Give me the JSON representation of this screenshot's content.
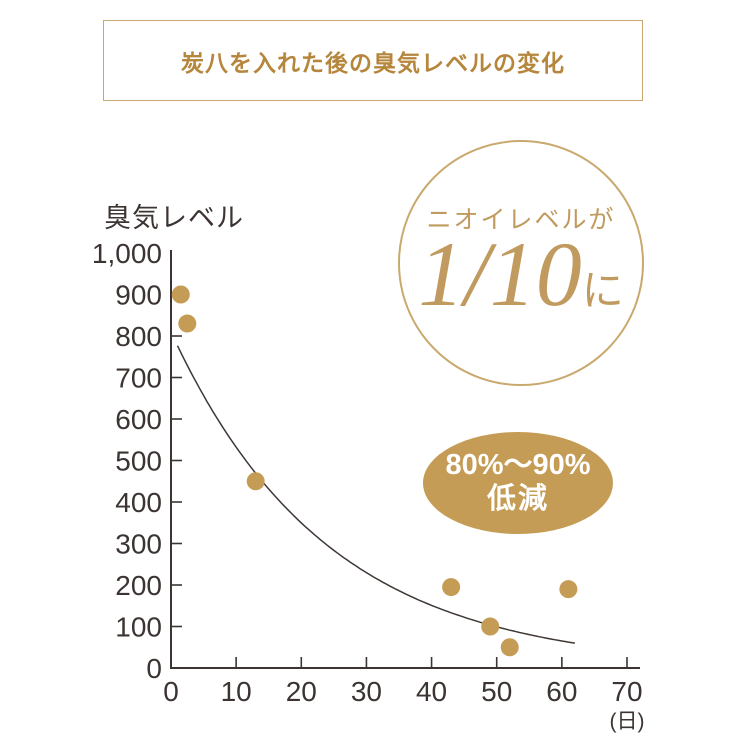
{
  "header": {
    "title": "炭八を入れた後の臭気レベルの変化"
  },
  "badges": {
    "circle_caption": "ニオイレベルが",
    "circle_value": "1/10",
    "circle_suffix": "に",
    "ellipse_line1": "80%〜90%",
    "ellipse_line2": "低減"
  },
  "colors": {
    "gold_text": "#b5863c",
    "gold_border": "#c9a96e",
    "gold_fill": "#c59c55",
    "gold_serif": "#c09a5e",
    "axis_text": "#3b3432",
    "curve": "#3f3734"
  },
  "chart_data": {
    "type": "scatter",
    "title": "炭八を入れた後の臭気レベルの変化",
    "ylabel": "臭気レベル",
    "xlabel": "(日)",
    "x_unit": "日",
    "xlim": [
      0,
      70
    ],
    "ylim": [
      0,
      1000
    ],
    "x_ticks": [
      0,
      10,
      20,
      30,
      40,
      50,
      60,
      70
    ],
    "y_ticks": [
      0,
      100,
      200,
      300,
      400,
      500,
      600,
      700,
      800,
      900,
      1000
    ],
    "y_tick_labels": [
      "0",
      "100",
      "200",
      "300",
      "400",
      "500",
      "600",
      "700",
      "800",
      "900",
      "1,000"
    ],
    "grid": false,
    "legend": false,
    "point_color": "#c59c55",
    "points": [
      {
        "x": 1.5,
        "y": 900
      },
      {
        "x": 2.5,
        "y": 830
      },
      {
        "x": 13,
        "y": 450
      },
      {
        "x": 43,
        "y": 195
      },
      {
        "x": 49,
        "y": 100
      },
      {
        "x": 52,
        "y": 50
      },
      {
        "x": 61,
        "y": 190
      }
    ],
    "trend_curve": {
      "type": "exponential",
      "formula": "y = 810 * exp(-0.042 * x)",
      "a": 810,
      "k": 0.042,
      "x_start": 1,
      "x_end": 62
    },
    "annotations": [
      "ニオイレベルが 1/10 に",
      "80%〜90% 低減"
    ]
  }
}
